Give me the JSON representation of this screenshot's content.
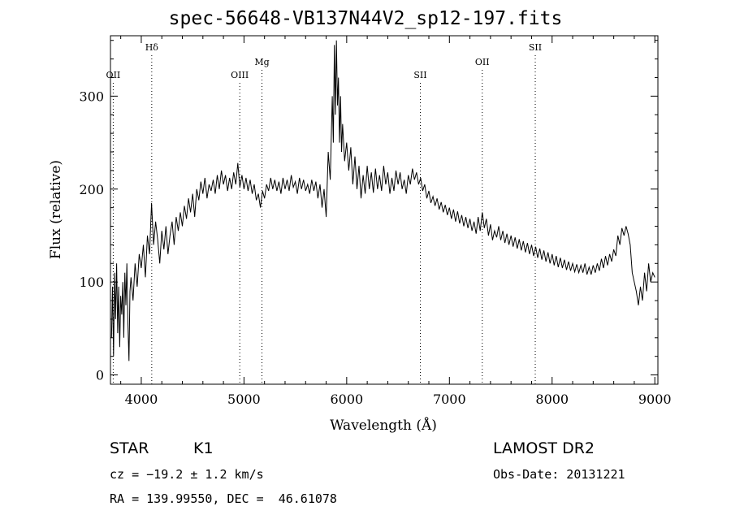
{
  "title": "spec-56648-VB137N44V2_sp12-197.fits",
  "footer": {
    "class_label": "STAR",
    "subclass_label": "K1",
    "survey": "LAMOST DR2",
    "cz": "cz = −19.2 ± 1.2 km/s",
    "obs_date": "Obs-Date: 20131221",
    "radec": "RA = 139.99550, DEC =  46.61078"
  },
  "chart_data": {
    "type": "line",
    "title": "spec-56648-VB137N44V2_sp12-197.fits",
    "xlabel": "Wavelength (Å)",
    "ylabel": "Flux (relative)",
    "xlim": [
      3700,
      9030
    ],
    "ylim": [
      -10,
      365
    ],
    "x_ticks": [
      4000,
      5000,
      6000,
      7000,
      8000,
      9000
    ],
    "y_ticks": [
      0,
      100,
      200,
      300
    ],
    "grid": false,
    "color": "#000000",
    "lines": [
      {
        "label": "OII",
        "x": 3727,
        "row": "low"
      },
      {
        "label": "Hδ",
        "x": 4102,
        "row": "high"
      },
      {
        "label": "OIII",
        "x": 4959,
        "row": "low"
      },
      {
        "label": "Mg",
        "x": 5175,
        "row": "mid"
      },
      {
        "label": "SII",
        "x": 6717,
        "row": "low"
      },
      {
        "label": "OII",
        "x": 7320,
        "row": "mid"
      },
      {
        "label": "SII",
        "x": 7836,
        "row": "high"
      }
    ],
    "series": [
      {
        "values": [
          [
            3710,
            40
          ],
          [
            3720,
            95
          ],
          [
            3730,
            20
          ],
          [
            3740,
            110
          ],
          [
            3750,
            60
          ],
          [
            3760,
            120
          ],
          [
            3770,
            45
          ],
          [
            3780,
            95
          ],
          [
            3790,
            30
          ],
          [
            3800,
            85
          ],
          [
            3810,
            65
          ],
          [
            3820,
            100
          ],
          [
            3830,
            40
          ],
          [
            3840,
            110
          ],
          [
            3850,
            75
          ],
          [
            3860,
            120
          ],
          [
            3870,
            55
          ],
          [
            3880,
            15
          ],
          [
            3890,
            90
          ],
          [
            3900,
            105
          ],
          [
            3920,
            80
          ],
          [
            3940,
            120
          ],
          [
            3960,
            95
          ],
          [
            3980,
            130
          ],
          [
            4000,
            115
          ],
          [
            4020,
            140
          ],
          [
            4040,
            105
          ],
          [
            4060,
            150
          ],
          [
            4080,
            130
          ],
          [
            4100,
            185
          ],
          [
            4120,
            140
          ],
          [
            4140,
            165
          ],
          [
            4160,
            145
          ],
          [
            4180,
            120
          ],
          [
            4200,
            155
          ],
          [
            4220,
            135
          ],
          [
            4240,
            160
          ],
          [
            4260,
            130
          ],
          [
            4280,
            150
          ],
          [
            4300,
            165
          ],
          [
            4320,
            140
          ],
          [
            4340,
            170
          ],
          [
            4360,
            155
          ],
          [
            4380,
            175
          ],
          [
            4400,
            160
          ],
          [
            4420,
            182
          ],
          [
            4440,
            168
          ],
          [
            4460,
            190
          ],
          [
            4480,
            175
          ],
          [
            4500,
            195
          ],
          [
            4520,
            170
          ],
          [
            4540,
            200
          ],
          [
            4560,
            188
          ],
          [
            4580,
            208
          ],
          [
            4600,
            195
          ],
          [
            4620,
            212
          ],
          [
            4640,
            190
          ],
          [
            4660,
            205
          ],
          [
            4680,
            198
          ],
          [
            4700,
            210
          ],
          [
            4720,
            195
          ],
          [
            4740,
            215
          ],
          [
            4760,
            200
          ],
          [
            4780,
            220
          ],
          [
            4800,
            205
          ],
          [
            4820,
            215
          ],
          [
            4840,
            198
          ],
          [
            4860,
            212
          ],
          [
            4880,
            200
          ],
          [
            4900,
            218
          ],
          [
            4920,
            205
          ],
          [
            4940,
            228
          ],
          [
            4960,
            202
          ],
          [
            4980,
            215
          ],
          [
            5000,
            200
          ],
          [
            5020,
            212
          ],
          [
            5040,
            198
          ],
          [
            5060,
            210
          ],
          [
            5080,
            195
          ],
          [
            5100,
            205
          ],
          [
            5120,
            188
          ],
          [
            5140,
            195
          ],
          [
            5160,
            180
          ],
          [
            5180,
            198
          ],
          [
            5200,
            190
          ],
          [
            5220,
            205
          ],
          [
            5240,
            198
          ],
          [
            5260,
            212
          ],
          [
            5280,
            200
          ],
          [
            5300,
            210
          ],
          [
            5320,
            198
          ],
          [
            5340,
            208
          ],
          [
            5360,
            195
          ],
          [
            5380,
            212
          ],
          [
            5400,
            200
          ],
          [
            5420,
            210
          ],
          [
            5440,
            198
          ],
          [
            5460,
            215
          ],
          [
            5480,
            202
          ],
          [
            5500,
            208
          ],
          [
            5520,
            195
          ],
          [
            5540,
            212
          ],
          [
            5560,
            200
          ],
          [
            5580,
            210
          ],
          [
            5600,
            198
          ],
          [
            5620,
            205
          ],
          [
            5640,
            195
          ],
          [
            5660,
            210
          ],
          [
            5680,
            198
          ],
          [
            5700,
            208
          ],
          [
            5720,
            190
          ],
          [
            5740,
            205
          ],
          [
            5760,
            180
          ],
          [
            5780,
            200
          ],
          [
            5800,
            170
          ],
          [
            5820,
            240
          ],
          [
            5840,
            210
          ],
          [
            5860,
            300
          ],
          [
            5870,
            250
          ],
          [
            5880,
            355
          ],
          [
            5890,
            280
          ],
          [
            5900,
            360
          ],
          [
            5910,
            290
          ],
          [
            5920,
            320
          ],
          [
            5930,
            250
          ],
          [
            5940,
            300
          ],
          [
            5950,
            240
          ],
          [
            5960,
            270
          ],
          [
            5980,
            230
          ],
          [
            6000,
            250
          ],
          [
            6020,
            220
          ],
          [
            6040,
            245
          ],
          [
            6060,
            205
          ],
          [
            6080,
            235
          ],
          [
            6100,
            200
          ],
          [
            6120,
            225
          ],
          [
            6140,
            190
          ],
          [
            6160,
            215
          ],
          [
            6180,
            195
          ],
          [
            6200,
            225
          ],
          [
            6220,
            200
          ],
          [
            6240,
            218
          ],
          [
            6260,
            196
          ],
          [
            6280,
            222
          ],
          [
            6300,
            200
          ],
          [
            6320,
            215
          ],
          [
            6340,
            198
          ],
          [
            6360,
            225
          ],
          [
            6380,
            205
          ],
          [
            6400,
            218
          ],
          [
            6420,
            195
          ],
          [
            6440,
            212
          ],
          [
            6460,
            198
          ],
          [
            6480,
            220
          ],
          [
            6500,
            205
          ],
          [
            6520,
            218
          ],
          [
            6540,
            200
          ],
          [
            6560,
            210
          ],
          [
            6580,
            195
          ],
          [
            6600,
            215
          ],
          [
            6620,
            205
          ],
          [
            6640,
            222
          ],
          [
            6660,
            210
          ],
          [
            6680,
            218
          ],
          [
            6700,
            205
          ],
          [
            6720,
            212
          ],
          [
            6740,
            198
          ],
          [
            6760,
            205
          ],
          [
            6780,
            190
          ],
          [
            6800,
            198
          ],
          [
            6820,
            185
          ],
          [
            6840,
            192
          ],
          [
            6860,
            182
          ],
          [
            6880,
            190
          ],
          [
            6900,
            178
          ],
          [
            6920,
            186
          ],
          [
            6940,
            175
          ],
          [
            6960,
            183
          ],
          [
            6980,
            172
          ],
          [
            7000,
            180
          ],
          [
            7020,
            168
          ],
          [
            7040,
            178
          ],
          [
            7060,
            165
          ],
          [
            7080,
            176
          ],
          [
            7100,
            163
          ],
          [
            7120,
            172
          ],
          [
            7140,
            160
          ],
          [
            7160,
            170
          ],
          [
            7180,
            158
          ],
          [
            7200,
            168
          ],
          [
            7220,
            155
          ],
          [
            7240,
            165
          ],
          [
            7260,
            152
          ],
          [
            7280,
            170
          ],
          [
            7300,
            155
          ],
          [
            7320,
            175
          ],
          [
            7340,
            158
          ],
          [
            7360,
            168
          ],
          [
            7380,
            150
          ],
          [
            7400,
            162
          ],
          [
            7420,
            145
          ],
          [
            7440,
            155
          ],
          [
            7460,
            148
          ],
          [
            7480,
            160
          ],
          [
            7500,
            145
          ],
          [
            7520,
            155
          ],
          [
            7540,
            142
          ],
          [
            7560,
            152
          ],
          [
            7580,
            140
          ],
          [
            7600,
            150
          ],
          [
            7620,
            138
          ],
          [
            7640,
            148
          ],
          [
            7660,
            136
          ],
          [
            7680,
            146
          ],
          [
            7700,
            134
          ],
          [
            7720,
            144
          ],
          [
            7740,
            132
          ],
          [
            7760,
            142
          ],
          [
            7780,
            130
          ],
          [
            7800,
            140
          ],
          [
            7820,
            128
          ],
          [
            7840,
            138
          ],
          [
            7860,
            126
          ],
          [
            7880,
            136
          ],
          [
            7900,
            124
          ],
          [
            7920,
            134
          ],
          [
            7940,
            122
          ],
          [
            7960,
            132
          ],
          [
            7980,
            120
          ],
          [
            8000,
            130
          ],
          [
            8020,
            118
          ],
          [
            8040,
            128
          ],
          [
            8060,
            116
          ],
          [
            8080,
            126
          ],
          [
            8100,
            115
          ],
          [
            8120,
            124
          ],
          [
            8140,
            113
          ],
          [
            8160,
            122
          ],
          [
            8180,
            112
          ],
          [
            8200,
            120
          ],
          [
            8220,
            111
          ],
          [
            8240,
            119
          ],
          [
            8260,
            110
          ],
          [
            8280,
            118
          ],
          [
            8300,
            110
          ],
          [
            8320,
            120
          ],
          [
            8340,
            108
          ],
          [
            8360,
            116
          ],
          [
            8380,
            108
          ],
          [
            8400,
            118
          ],
          [
            8420,
            110
          ],
          [
            8440,
            120
          ],
          [
            8460,
            112
          ],
          [
            8480,
            125
          ],
          [
            8500,
            115
          ],
          [
            8520,
            128
          ],
          [
            8540,
            118
          ],
          [
            8560,
            130
          ],
          [
            8580,
            122
          ],
          [
            8600,
            135
          ],
          [
            8620,
            128
          ],
          [
            8640,
            150
          ],
          [
            8660,
            140
          ],
          [
            8680,
            158
          ],
          [
            8700,
            150
          ],
          [
            8720,
            160
          ],
          [
            8740,
            152
          ],
          [
            8760,
            140
          ],
          [
            8780,
            110
          ],
          [
            8800,
            100
          ],
          [
            8820,
            90
          ],
          [
            8840,
            75
          ],
          [
            8860,
            95
          ],
          [
            8880,
            80
          ],
          [
            8900,
            110
          ],
          [
            8920,
            90
          ],
          [
            8940,
            120
          ],
          [
            8960,
            100
          ],
          [
            8980,
            110
          ],
          [
            9000,
            105
          ]
        ]
      }
    ]
  }
}
